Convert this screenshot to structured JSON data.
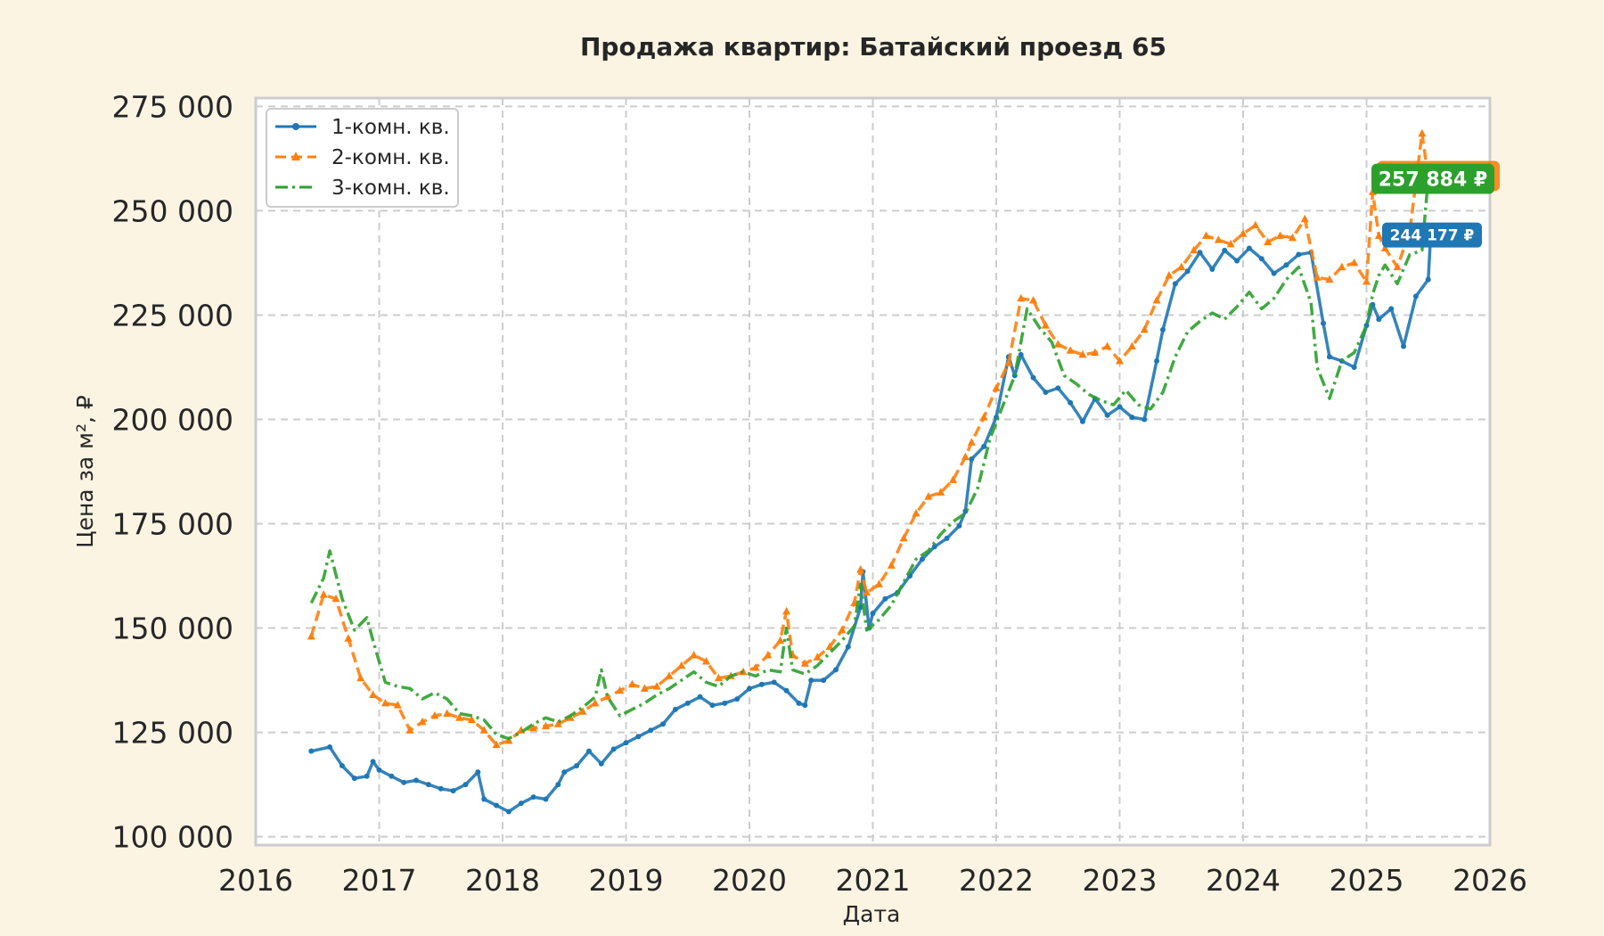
{
  "chart_data": {
    "type": "line",
    "title": "Продажа квартир: Батайский проезд 65",
    "xlabel": "Дата",
    "ylabel": "Цена за м², ₽",
    "xlim": [
      2016.0,
      2026.0
    ],
    "ylim": [
      98000,
      277000
    ],
    "x_ticks": [
      "2016",
      "2017",
      "2018",
      "2019",
      "2020",
      "2021",
      "2022",
      "2023",
      "2024",
      "2025",
      "2026"
    ],
    "y_ticks": [
      "100 000",
      "125 000",
      "150 000",
      "175 000",
      "200 000",
      "225 000",
      "250 000",
      "275 000"
    ],
    "grid": true,
    "legend_position": "top-left",
    "series": [
      {
        "name": "1-комн. кв.",
        "color": "#1f77b4",
        "style": "solid",
        "marker": "circle",
        "x": [
          2016.45,
          2016.6,
          2016.7,
          2016.8,
          2016.9,
          2016.95,
          2017.0,
          2017.1,
          2017.2,
          2017.3,
          2017.4,
          2017.5,
          2017.6,
          2017.7,
          2017.8,
          2017.85,
          2017.95,
          2018.05,
          2018.15,
          2018.25,
          2018.35,
          2018.45,
          2018.5,
          2018.6,
          2018.7,
          2018.8,
          2018.9,
          2019.0,
          2019.1,
          2019.2,
          2019.3,
          2019.4,
          2019.5,
          2019.6,
          2019.7,
          2019.8,
          2019.9,
          2020.0,
          2020.1,
          2020.2,
          2020.3,
          2020.4,
          2020.45,
          2020.5,
          2020.6,
          2020.7,
          2020.8,
          2020.9,
          2020.92,
          2020.97,
          2021.0,
          2021.1,
          2021.2,
          2021.3,
          2021.4,
          2021.5,
          2021.6,
          2021.7,
          2021.75,
          2021.8,
          2021.9,
          2022.0,
          2022.1,
          2022.15,
          2022.2,
          2022.3,
          2022.4,
          2022.5,
          2022.6,
          2022.7,
          2022.8,
          2022.9,
          2023.0,
          2023.1,
          2023.2,
          2023.3,
          2023.35,
          2023.45,
          2023.55,
          2023.65,
          2023.75,
          2023.85,
          2023.95,
          2024.05,
          2024.15,
          2024.25,
          2024.35,
          2024.45,
          2024.55,
          2024.65,
          2024.7,
          2024.8,
          2024.9,
          2025.0,
          2025.05,
          2025.1,
          2025.2,
          2025.3,
          2025.4,
          2025.5,
          2025.52
        ],
        "values": [
          120500,
          121500,
          117000,
          114000,
          114500,
          118000,
          116000,
          114500,
          113000,
          113500,
          112500,
          111500,
          111000,
          112500,
          115500,
          109000,
          107500,
          106000,
          108000,
          109500,
          109000,
          112500,
          115500,
          117000,
          120500,
          117500,
          121000,
          122500,
          124000,
          125500,
          127000,
          130500,
          132000,
          133500,
          131500,
          132000,
          133000,
          135500,
          136500,
          137000,
          135000,
          132000,
          131500,
          137500,
          137500,
          140000,
          145500,
          155000,
          163500,
          150000,
          153500,
          157000,
          158500,
          162500,
          166500,
          169500,
          171500,
          174500,
          178000,
          190500,
          193500,
          200500,
          215000,
          210500,
          215500,
          210000,
          206500,
          207500,
          204000,
          199500,
          205000,
          201000,
          203000,
          200500,
          200000,
          214000,
          221500,
          232500,
          235500,
          240000,
          236000,
          240500,
          238000,
          241000,
          238500,
          235000,
          237000,
          239500,
          240000,
          223000,
          215000,
          214000,
          212500,
          222500,
          227500,
          224000,
          226500,
          217500,
          229500,
          233500,
          244177
        ]
      },
      {
        "name": "2-комн. кв.",
        "color": "#ff7f0e",
        "style": "dashed",
        "marker": "triangle",
        "x": [
          2016.45,
          2016.55,
          2016.65,
          2016.75,
          2016.85,
          2016.95,
          2017.05,
          2017.15,
          2017.25,
          2017.35,
          2017.45,
          2017.55,
          2017.65,
          2017.75,
          2017.85,
          2017.95,
          2018.05,
          2018.15,
          2018.25,
          2018.35,
          2018.45,
          2018.55,
          2018.65,
          2018.75,
          2018.85,
          2018.95,
          2019.05,
          2019.15,
          2019.25,
          2019.35,
          2019.45,
          2019.55,
          2019.65,
          2019.75,
          2019.85,
          2019.95,
          2020.05,
          2020.15,
          2020.25,
          2020.3,
          2020.35,
          2020.45,
          2020.55,
          2020.65,
          2020.75,
          2020.85,
          2020.9,
          2020.95,
          2021.05,
          2021.15,
          2021.25,
          2021.35,
          2021.45,
          2021.55,
          2021.65,
          2021.75,
          2021.8,
          2021.9,
          2022.0,
          2022.1,
          2022.2,
          2022.3,
          2022.4,
          2022.5,
          2022.6,
          2022.7,
          2022.8,
          2022.9,
          2023.0,
          2023.1,
          2023.2,
          2023.3,
          2023.4,
          2023.5,
          2023.6,
          2023.7,
          2023.8,
          2023.9,
          2024.0,
          2024.1,
          2024.2,
          2024.3,
          2024.4,
          2024.5,
          2024.6,
          2024.7,
          2024.8,
          2024.9,
          2025.0,
          2025.05,
          2025.1,
          2025.15,
          2025.25,
          2025.35,
          2025.45,
          2025.5
        ],
        "values": [
          148000,
          158000,
          157000,
          147500,
          138000,
          134000,
          132000,
          131500,
          125500,
          127500,
          129000,
          129500,
          128500,
          128000,
          125500,
          122000,
          123000,
          125500,
          126000,
          126500,
          127000,
          128500,
          130000,
          132000,
          133500,
          135000,
          136500,
          135500,
          136000,
          138500,
          141000,
          143500,
          142000,
          138000,
          138500,
          139500,
          140500,
          143500,
          147000,
          154000,
          143500,
          141500,
          143000,
          145500,
          149500,
          156000,
          164000,
          158500,
          160500,
          165000,
          171500,
          177500,
          181500,
          182500,
          185500,
          191000,
          194500,
          200500,
          207500,
          213500,
          229000,
          228500,
          222500,
          218000,
          216500,
          215500,
          216000,
          217500,
          214000,
          217500,
          221500,
          228500,
          234500,
          236500,
          240500,
          244000,
          243000,
          242000,
          244500,
          246500,
          242500,
          244000,
          243500,
          248000,
          234000,
          233500,
          236500,
          237500,
          233000,
          254500,
          244000,
          241000,
          236500,
          245000,
          268500,
          257884
        ]
      },
      {
        "name": "3-комн. кв.",
        "color": "#2ca02c",
        "style": "dashdot",
        "marker": "none",
        "x": [
          2016.45,
          2016.55,
          2016.6,
          2016.7,
          2016.8,
          2016.9,
          2016.95,
          2017.05,
          2017.15,
          2017.25,
          2017.35,
          2017.45,
          2017.55,
          2017.65,
          2017.75,
          2017.85,
          2017.95,
          2018.05,
          2018.15,
          2018.25,
          2018.35,
          2018.45,
          2018.55,
          2018.65,
          2018.75,
          2018.8,
          2018.85,
          2018.95,
          2019.05,
          2019.15,
          2019.25,
          2019.35,
          2019.45,
          2019.55,
          2019.65,
          2019.75,
          2019.85,
          2019.95,
          2020.05,
          2020.15,
          2020.25,
          2020.3,
          2020.35,
          2020.45,
          2020.55,
          2020.65,
          2020.75,
          2020.85,
          2020.9,
          2020.95,
          2021.05,
          2021.15,
          2021.25,
          2021.35,
          2021.45,
          2021.55,
          2021.65,
          2021.75,
          2021.85,
          2021.95,
          2022.05,
          2022.15,
          2022.25,
          2022.35,
          2022.45,
          2022.55,
          2022.65,
          2022.75,
          2022.85,
          2022.95,
          2023.05,
          2023.15,
          2023.25,
          2023.35,
          2023.45,
          2023.55,
          2023.65,
          2023.75,
          2023.85,
          2023.95,
          2024.05,
          2024.15,
          2024.25,
          2024.35,
          2024.45,
          2024.55,
          2024.6,
          2024.7,
          2024.8,
          2024.9,
          2025.0,
          2025.05,
          2025.1,
          2025.15,
          2025.25,
          2025.35,
          2025.45,
          2025.5
        ],
        "values": [
          156000,
          162000,
          168500,
          157000,
          149500,
          152500,
          147000,
          137000,
          136000,
          135500,
          133000,
          134500,
          133000,
          129500,
          129000,
          128000,
          124500,
          123500,
          125000,
          127000,
          128500,
          127500,
          129000,
          131000,
          133500,
          140000,
          133500,
          129000,
          130500,
          132000,
          134000,
          135500,
          137500,
          139500,
          137000,
          136000,
          138500,
          139500,
          138500,
          140000,
          139500,
          150000,
          140000,
          139000,
          141000,
          144000,
          147000,
          150500,
          160500,
          149500,
          152000,
          155500,
          161000,
          166500,
          168500,
          172500,
          175500,
          177500,
          183500,
          195500,
          203000,
          210500,
          226500,
          222000,
          218500,
          210500,
          208500,
          206000,
          204500,
          203500,
          207000,
          203500,
          202500,
          206500,
          215000,
          221000,
          223500,
          225500,
          224000,
          227000,
          230500,
          226500,
          229000,
          233500,
          236500,
          228000,
          212500,
          205000,
          214000,
          216000,
          222500,
          230000,
          234500,
          237000,
          232500,
          239500,
          240500,
          257884
        ]
      }
    ],
    "badges": [
      {
        "text": "257 884 ₽",
        "color": "#2ca02c",
        "value": 257884,
        "series": "3-комн. кв."
      },
      {
        "text": "244 177 ₽",
        "color": "#1f77b4",
        "value": 244177,
        "series": "1-комн. кв."
      }
    ]
  }
}
